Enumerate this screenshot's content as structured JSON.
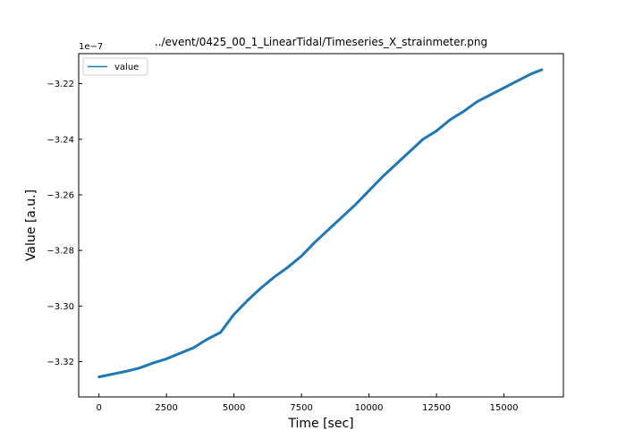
{
  "chart_data": {
    "type": "line",
    "title": "../event/0425_00_1_LinearTidal/Timeseries_X_strainmeter.png",
    "xlabel": "Time [sec]",
    "ylabel": "Value [a.u.]",
    "y_offset_label": "1e−7",
    "xlim": [
      -750,
      17200
    ],
    "ylim": [
      -3.3327,
      -3.2092
    ],
    "x_ticks": [
      0,
      2500,
      5000,
      7500,
      10000,
      12500,
      15000
    ],
    "x_tick_labels": [
      "0",
      "2500",
      "5000",
      "7500",
      "10000",
      "12500",
      "15000"
    ],
    "y_ticks": [
      -3.32,
      -3.3,
      -3.28,
      -3.26,
      -3.24,
      -3.22
    ],
    "y_tick_labels": [
      "−3.32",
      "−3.30",
      "−3.28",
      "−3.26",
      "−3.24",
      "−3.22"
    ],
    "grid": false,
    "legend_position": "top-left",
    "series": [
      {
        "name": "value",
        "color": "#1f77b4",
        "x": [
          0,
          500,
          1000,
          1500,
          2000,
          2500,
          3000,
          3500,
          4000,
          4500,
          5000,
          5500,
          6000,
          6500,
          7000,
          7500,
          8000,
          8500,
          9000,
          9500,
          10000,
          10500,
          11000,
          11500,
          12000,
          12500,
          13000,
          13500,
          14000,
          14500,
          15000,
          15500,
          16000,
          16400
        ],
        "y": [
          -3.3255,
          -3.3245,
          -3.3235,
          -3.3223,
          -3.3205,
          -3.319,
          -3.317,
          -3.315,
          -3.312,
          -3.3095,
          -3.303,
          -3.298,
          -3.2935,
          -3.2895,
          -3.286,
          -3.282,
          -3.277,
          -3.2725,
          -3.268,
          -3.2635,
          -3.2585,
          -3.2535,
          -3.249,
          -3.2445,
          -3.24,
          -3.237,
          -3.233,
          -3.23,
          -3.2265,
          -3.224,
          -3.2215,
          -3.219,
          -3.2165,
          -3.215
        ]
      }
    ]
  }
}
